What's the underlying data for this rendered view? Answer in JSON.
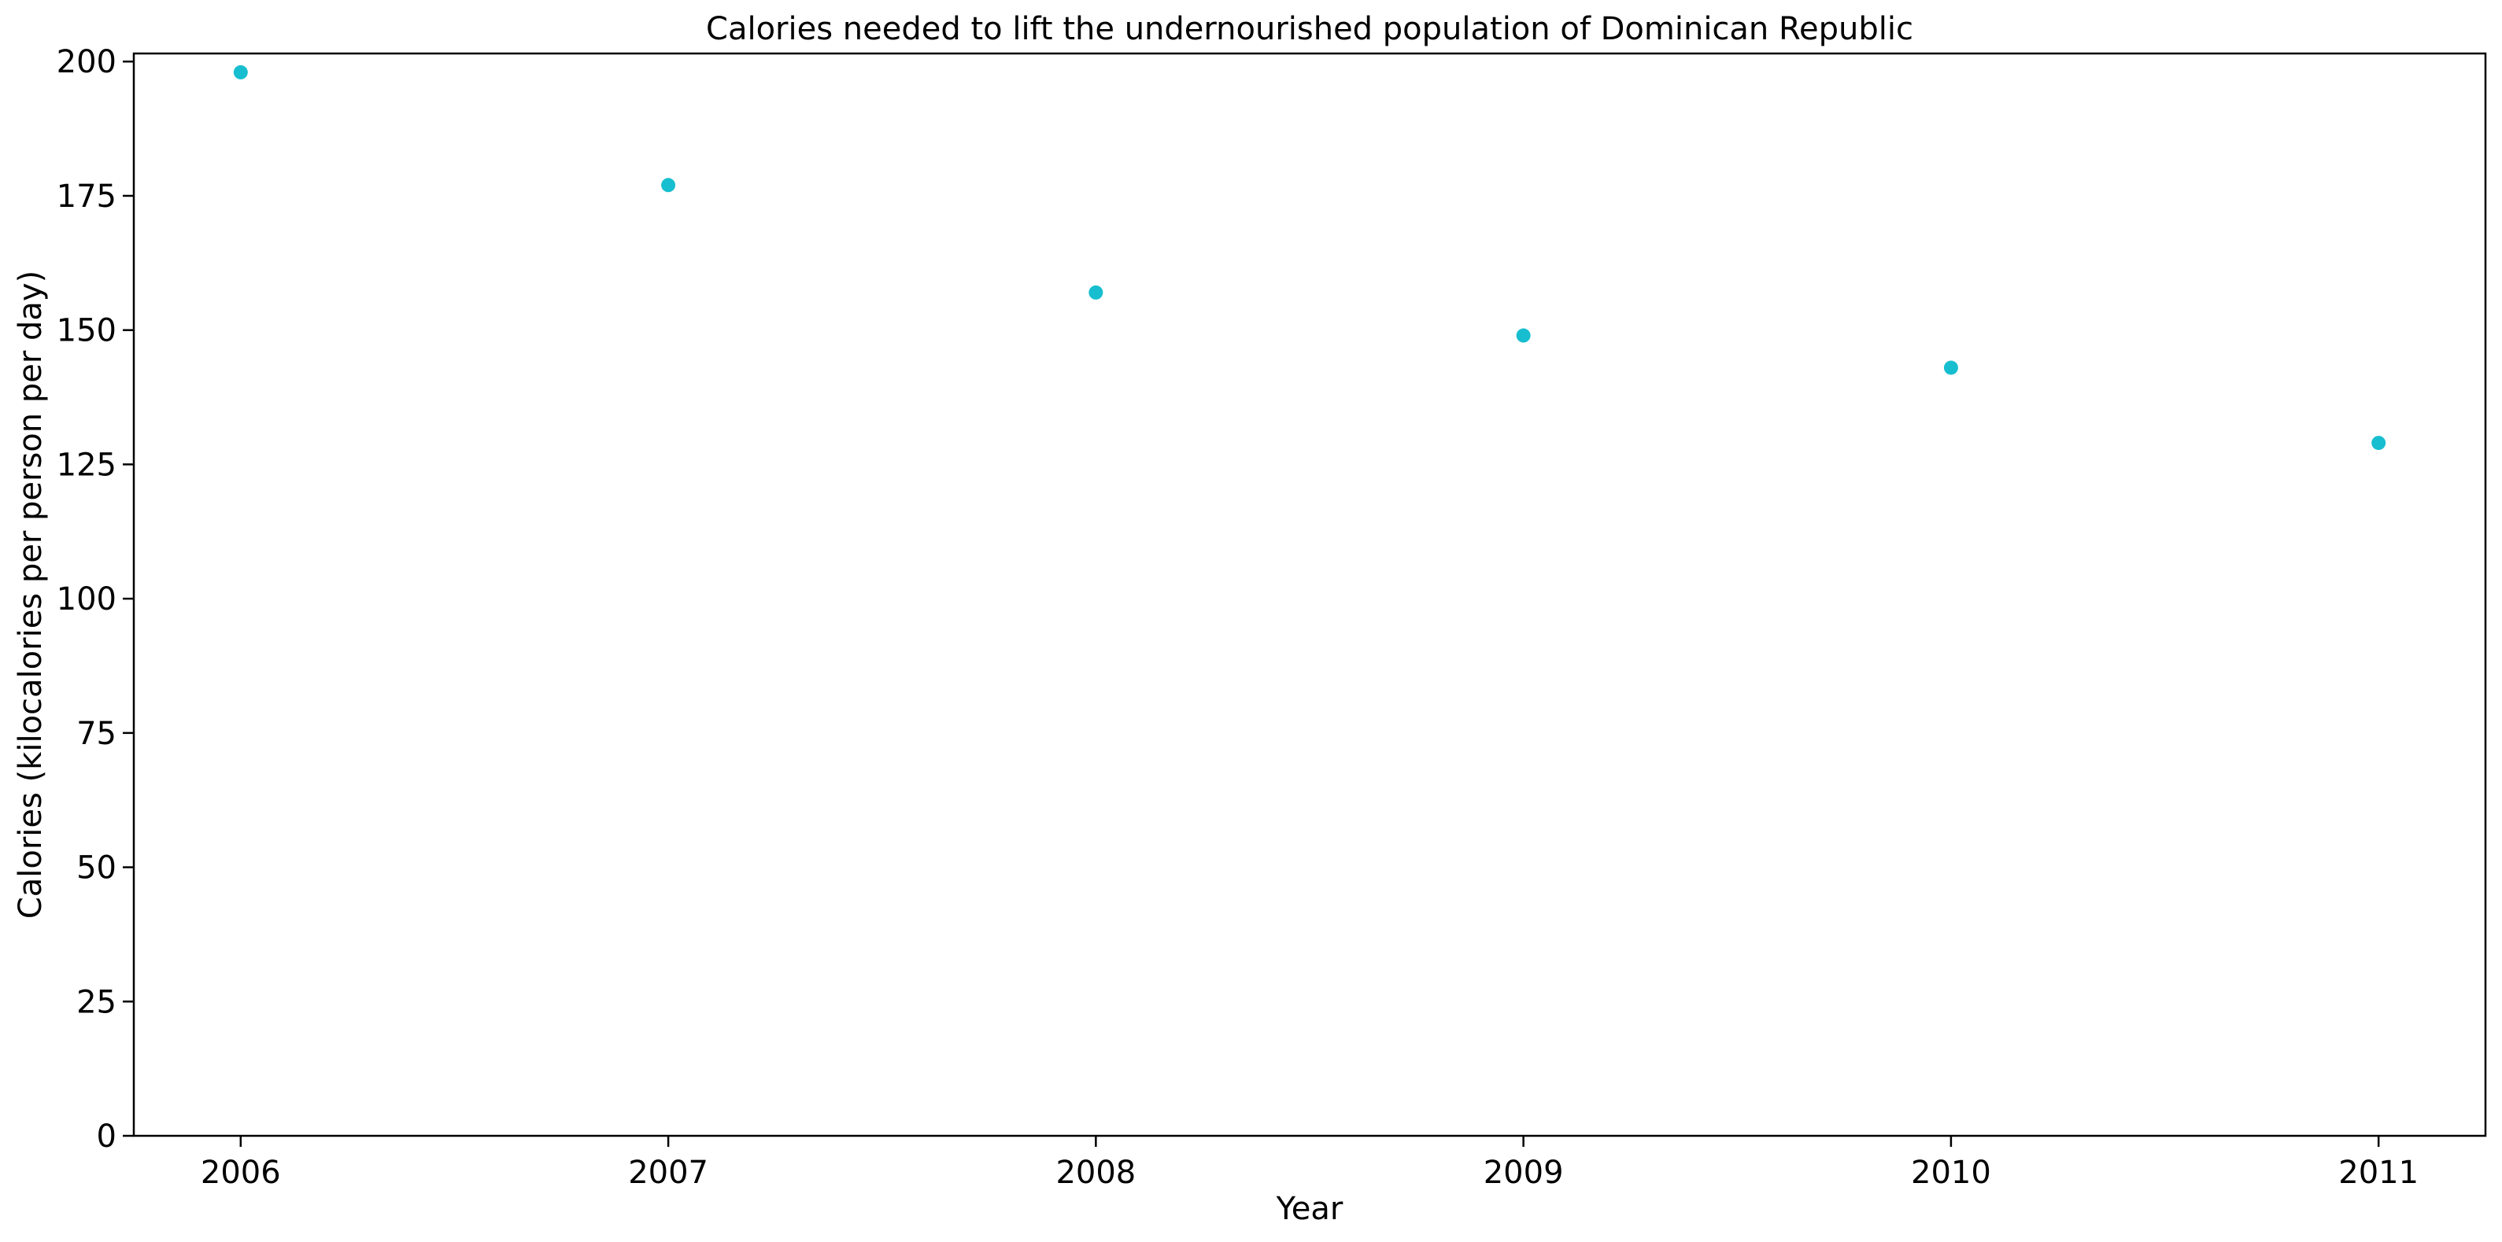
{
  "chart_data": {
    "type": "scatter",
    "title": "Calories needed to lift the undernourished population of Dominican Republic",
    "xlabel": "Year",
    "ylabel": "Calories (kilocalories per person per day)",
    "x": [
      2006,
      2007,
      2008,
      2009,
      2010,
      2011
    ],
    "series": [
      {
        "values": [
          198,
          177,
          157,
          149,
          143,
          129
        ],
        "color": "#17becf"
      }
    ],
    "xlim": [
      2005.75,
      2011.25
    ],
    "ylim": [
      0,
      201.5
    ],
    "xticks": [
      "2006",
      "2007",
      "2008",
      "2009",
      "2010",
      "2011"
    ],
    "yticks": [
      "0",
      "25",
      "50",
      "75",
      "100",
      "125",
      "150",
      "175",
      "200"
    ],
    "grid": false,
    "legend": "none"
  }
}
